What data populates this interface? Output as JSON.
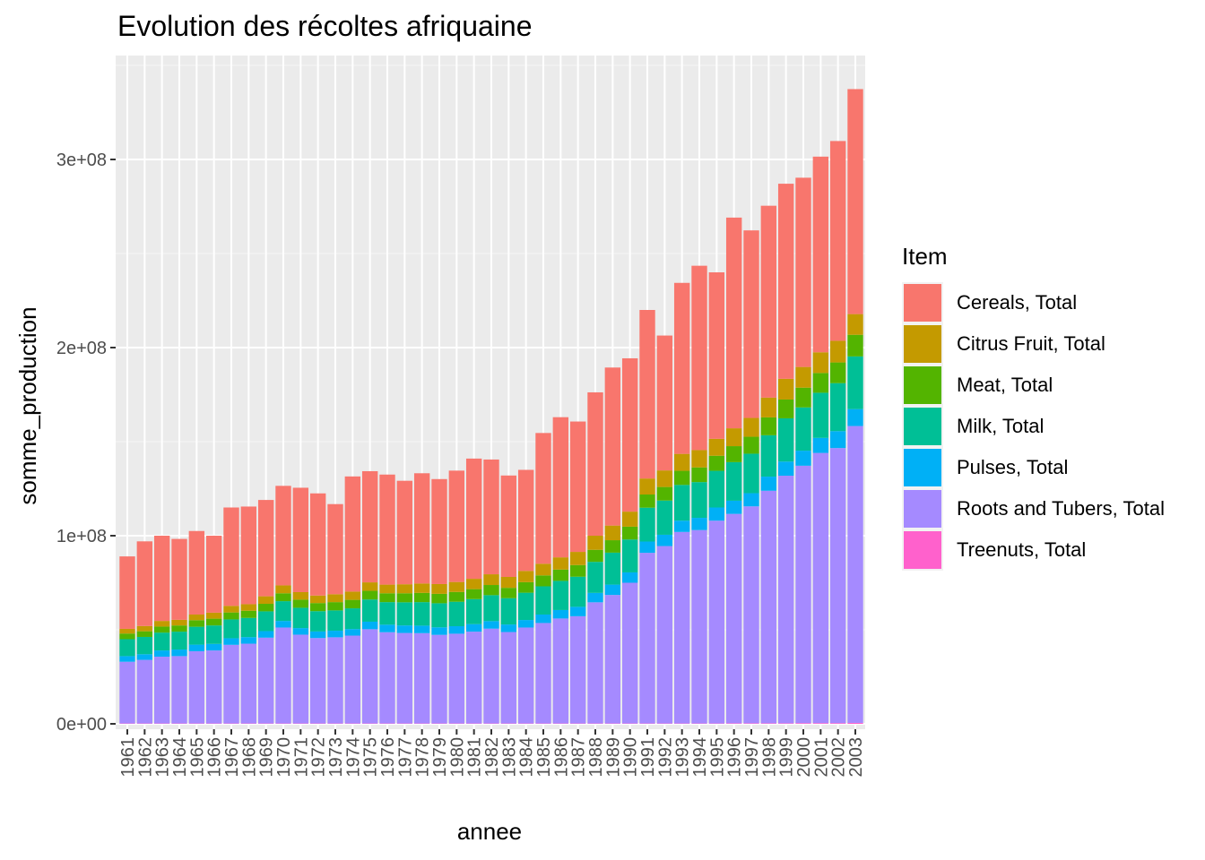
{
  "chart_data": {
    "type": "bar",
    "stacked": true,
    "title": "Evolution des récoltes afriquaine",
    "xlabel": "annee",
    "ylabel": "somme_production",
    "ylim": [
      0,
      350000000
    ],
    "yticks": [
      0,
      100000000,
      200000000,
      300000000
    ],
    "ytick_labels": [
      "0e+00",
      "1e+08",
      "2e+08",
      "3e+08"
    ],
    "grid": true,
    "legend_title": "Item",
    "legend_position": "right",
    "categories": [
      "1961",
      "1962",
      "1963",
      "1964",
      "1965",
      "1966",
      "1967",
      "1968",
      "1969",
      "1970",
      "1971",
      "1972",
      "1973",
      "1974",
      "1975",
      "1976",
      "1977",
      "1978",
      "1979",
      "1980",
      "1981",
      "1982",
      "1983",
      "1984",
      "1985",
      "1986",
      "1987",
      "1988",
      "1989",
      "1990",
      "1991",
      "1992",
      "1993",
      "1994",
      "1995",
      "1996",
      "1997",
      "1998",
      "1999",
      "2000",
      "2001",
      "2002",
      "2003"
    ],
    "series": [
      {
        "name": "Treenuts, Total",
        "color": "#FF61CC",
        "values": [
          200000,
          200000,
          200000,
          200000,
          200000,
          200000,
          200000,
          200000,
          200000,
          200000,
          200000,
          200000,
          200000,
          200000,
          200000,
          200000,
          200000,
          200000,
          200000,
          200000,
          200000,
          200000,
          200000,
          200000,
          200000,
          200000,
          200000,
          200000,
          200000,
          200000,
          200000,
          200000,
          200000,
          200000,
          200000,
          300000,
          300000,
          300000,
          300000,
          400000,
          400000,
          400000,
          500000
        ]
      },
      {
        "name": "Roots and Tubers, Total",
        "color": "#A58AFF",
        "values": [
          32800000,
          33800000,
          35500000,
          35800000,
          38400000,
          38800000,
          41800000,
          42400000,
          45600000,
          51000000,
          47200000,
          45400000,
          45800000,
          46700000,
          50100000,
          48500000,
          48100000,
          48000000,
          47100000,
          47700000,
          48800000,
          50400000,
          48600000,
          51000000,
          53400000,
          55800000,
          57000000,
          64400000,
          68300000,
          74800000,
          90700000,
          94300000,
          101800000,
          102800000,
          107800000,
          111300000,
          115300000,
          123600000,
          131600000,
          136800000,
          143600000,
          146200000,
          157800000
        ]
      },
      {
        "name": "Pulses, Total",
        "color": "#00B0F6",
        "values": [
          3000000,
          3000000,
          3300000,
          3500000,
          3500000,
          3500000,
          3500000,
          3500000,
          3500000,
          3500000,
          3500000,
          3500000,
          3500000,
          3500000,
          4000000,
          4000000,
          4000000,
          4000000,
          4000000,
          4000000,
          4000000,
          4000000,
          4000000,
          4000000,
          4500000,
          4500000,
          5000000,
          5000000,
          5500000,
          5500000,
          6000000,
          6000000,
          6000000,
          6500000,
          7000000,
          7000000,
          7000000,
          7500000,
          7500000,
          8000000,
          8000000,
          9000000,
          9000000
        ]
      },
      {
        "name": "Milk, Total",
        "color": "#00BF96",
        "values": [
          9000000,
          9200000,
          9500000,
          9500000,
          9500000,
          9800000,
          10000000,
          10200000,
          10500000,
          10500000,
          10800000,
          10800000,
          10800000,
          11000000,
          11800000,
          12000000,
          12300000,
          12500000,
          12800000,
          13000000,
          13300000,
          13800000,
          14000000,
          14500000,
          15000000,
          15500000,
          16000000,
          16500000,
          17000000,
          17500000,
          18000000,
          18200000,
          19000000,
          19000000,
          19500000,
          20500000,
          21000000,
          22000000,
          23000000,
          23000000,
          24000000,
          25500000,
          28000000
        ]
      },
      {
        "name": "Meat, Total",
        "color": "#53B400",
        "values": [
          3000000,
          3000000,
          3200000,
          3300000,
          3500000,
          3600000,
          3700000,
          3800000,
          4000000,
          4200000,
          4300000,
          4300000,
          4400000,
          4500000,
          4600000,
          4700000,
          4800000,
          4900000,
          5000000,
          5200000,
          5300000,
          5400000,
          5500000,
          5600000,
          5800000,
          6000000,
          6200000,
          6400000,
          6600000,
          6800000,
          7000000,
          7200000,
          7500000,
          7800000,
          8000000,
          8500000,
          9000000,
          9500000,
          10000000,
          10500000,
          10500000,
          11000000,
          11500000
        ]
      },
      {
        "name": "Citrus Fruit, Total",
        "color": "#C49A00",
        "values": [
          2500000,
          2800000,
          3000000,
          3000000,
          3000000,
          3200000,
          3500000,
          3500000,
          4000000,
          4200000,
          4000000,
          4000000,
          4200000,
          4400000,
          4500000,
          4600000,
          4800000,
          5000000,
          5200000,
          5300000,
          5500000,
          5700000,
          5800000,
          6000000,
          6200000,
          6500000,
          7000000,
          7500000,
          7800000,
          8000000,
          8500000,
          8800000,
          9000000,
          9200000,
          9000000,
          9500000,
          10000000,
          10500000,
          11000000,
          11000000,
          11000000,
          11500000,
          11000000
        ]
      },
      {
        "name": "Cereals, Total",
        "color": "#F8766D",
        "values": [
          38500000,
          45000000,
          45300000,
          43000000,
          44400000,
          40900000,
          52300000,
          51900000,
          51200000,
          52900000,
          55500000,
          54300000,
          47900000,
          61200000,
          59100000,
          58500000,
          55000000,
          58600000,
          55800000,
          59200000,
          63900000,
          61000000,
          53900000,
          53700000,
          69500000,
          74500000,
          69300000,
          76200000,
          84000000,
          81500000,
          89600000,
          71700000,
          90900000,
          98000000,
          88500000,
          112000000,
          99700000,
          102000000,
          103700000,
          100600000,
          104000000,
          106200000,
          119600000
        ]
      }
    ]
  }
}
